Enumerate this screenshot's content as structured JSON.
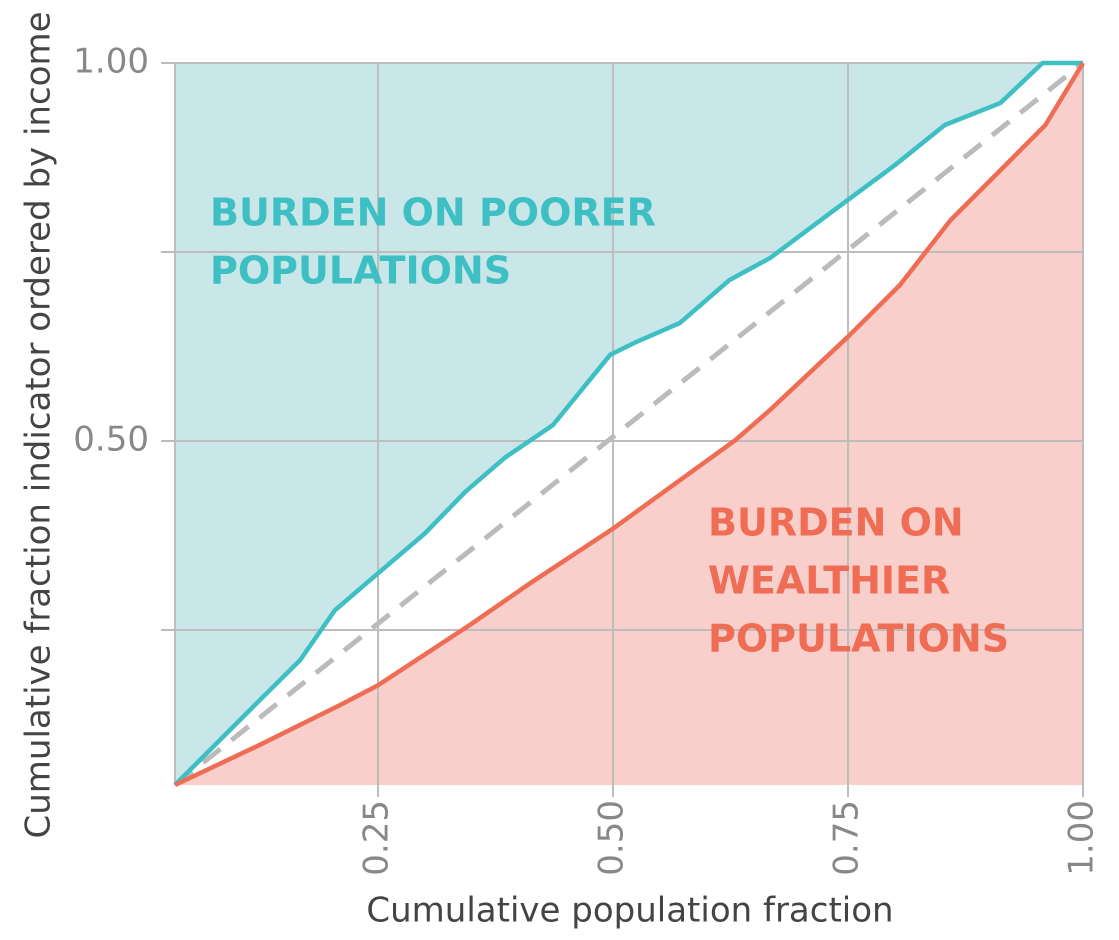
{
  "chart_data": {
    "type": "line",
    "xlabel": "Cumulative population fraction",
    "ylabel": "Cumulative fraction indicator ordered by income",
    "xlim": [
      0.034,
      1
    ],
    "ylim": [
      0.045,
      1
    ],
    "xticks": [
      {
        "value": 0.25,
        "label": "0.25"
      },
      {
        "value": 0.5,
        "label": "0.50"
      },
      {
        "value": 0.75,
        "label": "0.75"
      },
      {
        "value": 1,
        "label": "1.00"
      }
    ],
    "yticks": [
      {
        "value": 0.25,
        "label": null
      },
      {
        "value": 0.5,
        "label": "0.50"
      },
      {
        "value": 0.75,
        "label": null
      },
      {
        "value": 1,
        "label": "1.00"
      }
    ],
    "grid": true,
    "series": [
      {
        "color": "#3dbfc3",
        "fill": "#c9e6e8",
        "fill_side": "above",
        "x": [
          0.034,
          0.124,
          0.167,
          0.204,
          0.25,
          0.3,
          0.343,
          0.385,
          0.436,
          0.497,
          0.523,
          0.571,
          0.624,
          0.667,
          0.75,
          0.8,
          0.853,
          0.912,
          0.957,
          1.0
        ],
        "values": [
          0.045,
          0.157,
          0.21,
          0.276,
          0.325,
          0.378,
          0.433,
          0.478,
          0.521,
          0.614,
          0.63,
          0.656,
          0.713,
          0.742,
          0.819,
          0.865,
          0.918,
          0.947,
          1.0,
          1.0
        ]
      },
      {
        "color": "#ef6c55",
        "fill": "#f9cfcb",
        "fill_side": "below",
        "x": [
          0.034,
          0.124,
          0.21,
          0.25,
          0.348,
          0.412,
          0.501,
          0.571,
          0.63,
          0.667,
          0.75,
          0.805,
          0.859,
          0.912,
          0.96,
          1.0
        ],
        "values": [
          0.045,
          0.098,
          0.151,
          0.177,
          0.257,
          0.312,
          0.385,
          0.448,
          0.501,
          0.541,
          0.638,
          0.706,
          0.792,
          0.858,
          0.918,
          1.0
        ]
      }
    ],
    "annotations": [
      {
        "lines": [
          "BURDEN ON POORER",
          "POPULATIONS"
        ],
        "color": "#3dbfc3"
      },
      {
        "lines": [
          "BURDEN ON",
          "WEALTHIER",
          "POPULATIONS"
        ],
        "color": "#ef6c55"
      }
    ]
  }
}
